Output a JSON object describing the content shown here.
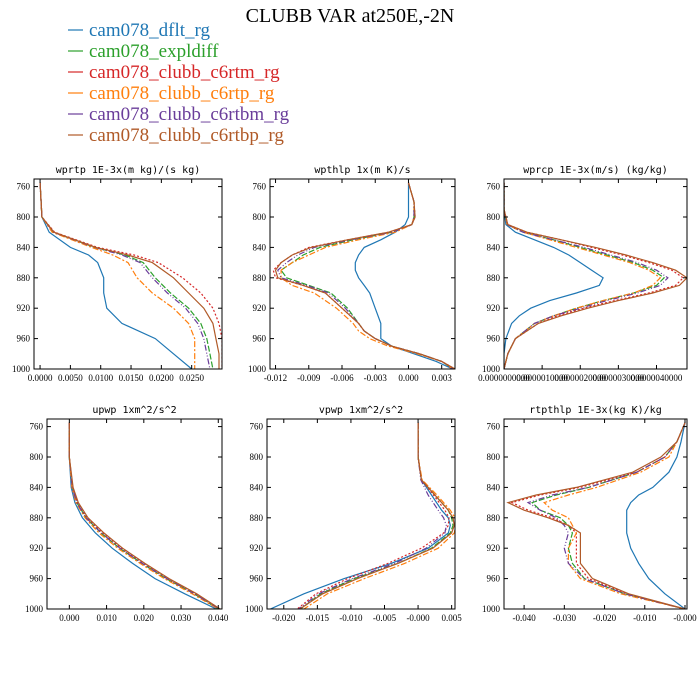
{
  "figure": {
    "title": "CLUBB VAR at250E,-2N"
  },
  "legend": [
    {
      "label": "cam078_dflt_rg",
      "color": "#1f77b4"
    },
    {
      "label": "cam078_expldiff",
      "color": "#2ca02c"
    },
    {
      "label": "cam078_clubb_c6rtm_rg",
      "color": "#d62728"
    },
    {
      "label": "cam078_clubb_c6rtp_rg",
      "color": "#ff7f0e"
    },
    {
      "label": "cam078_clubb_c6rtbm_rg",
      "color": "#6a3d9a"
    },
    {
      "label": "cam078_clubb_c6rtbp_rg",
      "color": "#b05a28"
    }
  ],
  "chart_data": [
    {
      "type": "line",
      "title": "wprtp  1E-3x(m kg)/(s kg)",
      "xlim": [
        -0.001,
        0.03
      ],
      "ylim": [
        1000,
        750
      ],
      "xticks": [
        0.0,
        0.005,
        0.01,
        0.015,
        0.02,
        0.025
      ],
      "xtick_labels": [
        "0.0000",
        "0.0050",
        "0.0100",
        "0.0150",
        "0.0200",
        "0.0250"
      ],
      "yticks": [
        760,
        800,
        840,
        880,
        920,
        960,
        1000
      ],
      "y": [
        755,
        800,
        820,
        840,
        850,
        860,
        880,
        900,
        920,
        940,
        960,
        980,
        1000
      ],
      "series": [
        {
          "name": "cam078_dflt_rg",
          "values": [
            0.0,
            0.0003,
            0.0015,
            0.005,
            0.008,
            0.0095,
            0.0105,
            0.0105,
            0.011,
            0.0135,
            0.019,
            0.022,
            0.025
          ]
        },
        {
          "name": "cam078_expldiff",
          "values": [
            0.0,
            0.0003,
            0.0022,
            0.009,
            0.014,
            0.017,
            0.019,
            0.0215,
            0.0245,
            0.0265,
            0.0275,
            0.028,
            0.0285
          ]
        },
        {
          "name": "cam078_clubb_c6rtm_rg",
          "values": [
            0.0,
            0.0003,
            0.0024,
            0.0095,
            0.0155,
            0.0195,
            0.0235,
            0.0265,
            0.0285,
            0.0295,
            0.03,
            0.03,
            0.03
          ]
        },
        {
          "name": "cam078_clubb_c6rtp_rg",
          "values": [
            0.0,
            0.0003,
            0.002,
            0.0085,
            0.012,
            0.0145,
            0.016,
            0.0185,
            0.022,
            0.0245,
            0.0255,
            0.0255,
            0.0255
          ]
        },
        {
          "name": "cam078_clubb_c6rtbm_rg",
          "values": [
            0.0,
            0.0003,
            0.0022,
            0.009,
            0.0135,
            0.0165,
            0.0185,
            0.021,
            0.024,
            0.026,
            0.027,
            0.0275,
            0.028
          ]
        },
        {
          "name": "cam078_clubb_c6rtbp_rg",
          "values": [
            0.0,
            0.0003,
            0.0023,
            0.0092,
            0.0145,
            0.0185,
            0.022,
            0.0245,
            0.027,
            0.0285,
            0.029,
            0.0295,
            0.0295
          ]
        }
      ]
    },
    {
      "type": "line",
      "title": "wpthlp  1x(m K)/s",
      "xlim": [
        -0.0125,
        0.0042
      ],
      "ylim": [
        1000,
        750
      ],
      "xticks": [
        -0.012,
        -0.009,
        -0.006,
        -0.003,
        0.0,
        0.003
      ],
      "xtick_labels": [
        "-0.012",
        "-0.009",
        "-0.006",
        "-0.003",
        "0.000",
        "0.003"
      ],
      "yticks": [
        760,
        800,
        840,
        880,
        920,
        960,
        1000
      ],
      "y": [
        755,
        780,
        800,
        810,
        820,
        830,
        840,
        850,
        860,
        870,
        880,
        890,
        900,
        920,
        940,
        950,
        960,
        970,
        980,
        990,
        1000
      ],
      "series": [
        {
          "name": "cam078_dflt_rg",
          "values": [
            0.0,
            0.0,
            0.0,
            -0.0003,
            -0.0012,
            -0.0025,
            -0.004,
            -0.0045,
            -0.0048,
            -0.0048,
            -0.0045,
            -0.004,
            -0.0035,
            -0.003,
            -0.0025,
            -0.0025,
            -0.0025,
            -0.0015,
            0.0005,
            0.0025,
            0.004
          ]
        },
        {
          "name": "cam078_expldiff",
          "values": [
            0.0,
            0.0005,
            0.0005,
            0.0003,
            -0.0015,
            -0.005,
            -0.008,
            -0.0095,
            -0.0105,
            -0.0115,
            -0.011,
            -0.009,
            -0.007,
            -0.0055,
            -0.0045,
            -0.004,
            -0.003,
            -0.0015,
            0.001,
            0.003,
            0.004
          ]
        },
        {
          "name": "cam078_clubb_c6rtm_rg",
          "values": [
            0.0,
            0.0005,
            0.0006,
            0.0003,
            -0.0018,
            -0.0055,
            -0.009,
            -0.0105,
            -0.0115,
            -0.0122,
            -0.012,
            -0.0095,
            -0.0075,
            -0.006,
            -0.0045,
            -0.004,
            -0.003,
            -0.0015,
            0.001,
            0.003,
            0.0042
          ]
        },
        {
          "name": "cam078_clubb_c6rtp_rg",
          "values": [
            0.0,
            0.0005,
            0.0005,
            0.0003,
            -0.0012,
            -0.0045,
            -0.0075,
            -0.009,
            -0.0105,
            -0.0115,
            -0.0115,
            -0.0105,
            -0.0085,
            -0.0065,
            -0.005,
            -0.0045,
            -0.0035,
            -0.0018,
            0.0008,
            0.003,
            0.004
          ]
        },
        {
          "name": "cam078_clubb_c6rtbm_rg",
          "values": [
            0.0,
            0.0005,
            0.0005,
            0.0003,
            -0.0015,
            -0.0052,
            -0.0085,
            -0.01,
            -0.011,
            -0.0118,
            -0.0115,
            -0.0092,
            -0.0072,
            -0.0057,
            -0.0045,
            -0.004,
            -0.003,
            -0.0015,
            0.001,
            0.003,
            0.004
          ]
        },
        {
          "name": "cam078_clubb_c6rtbp_rg",
          "values": [
            0.0,
            0.0005,
            0.0006,
            0.0003,
            -0.0018,
            -0.0055,
            -0.0088,
            -0.0105,
            -0.0115,
            -0.012,
            -0.0118,
            -0.0095,
            -0.0075,
            -0.006,
            -0.0045,
            -0.004,
            -0.003,
            -0.0015,
            0.001,
            0.003,
            0.0042
          ]
        }
      ]
    },
    {
      "type": "line",
      "title": "wprcp  1E-3x(m/s) (kg/kg)",
      "xlim": [
        0.0,
        4.8e-06
      ],
      "ylim": [
        1000,
        750
      ],
      "xticks": [
        0.0,
        1e-06,
        2e-06,
        3e-06,
        4e-06
      ],
      "xtick_labels": [
        "0.0000000000",
        "0.0000010000",
        "0.0000020000",
        "0.0000030000",
        "0.0000040000"
      ],
      "yticks": [
        760,
        800,
        840,
        880,
        920,
        960,
        1000
      ],
      "y": [
        755,
        790,
        810,
        820,
        830,
        840,
        850,
        860,
        870,
        880,
        890,
        900,
        910,
        920,
        930,
        940,
        960,
        980,
        1000
      ],
      "series": [
        {
          "name": "cam078_dflt_rg",
          "values": [
            0.0,
            0.0,
            5e-08,
            3e-07,
            8e-07,
            1.3e-06,
            1.7e-06,
            2e-06,
            2.3e-06,
            2.6e-06,
            2.5e-06,
            1.9e-06,
            1.2e-06,
            7e-07,
            4e-07,
            2e-07,
            5e-08,
            0.0,
            0.0
          ]
        },
        {
          "name": "cam078_expldiff",
          "values": [
            0.0,
            0.0,
            8e-08,
            5e-07,
            1.3e-06,
            2e-06,
            2.7e-06,
            3.4e-06,
            3.9e-06,
            4.2e-06,
            4e-06,
            3.4e-06,
            2.6e-06,
            1.9e-06,
            1.3e-06,
            8e-07,
            3e-07,
            1e-07,
            0.0
          ]
        },
        {
          "name": "cam078_clubb_c6rtm_rg",
          "values": [
            0.0,
            0.0,
            1e-07,
            6e-07,
            1.5e-06,
            2.3e-06,
            3.1e-06,
            3.8e-06,
            4.4e-06,
            4.7e-06,
            4.5e-06,
            3.8e-06,
            2.9e-06,
            2.1e-06,
            1.4e-06,
            9e-07,
            3e-07,
            1e-07,
            0.0
          ]
        },
        {
          "name": "cam078_clubb_c6rtp_rg",
          "values": [
            0.0,
            0.0,
            8e-08,
            5e-07,
            1.2e-06,
            1.9e-06,
            2.6e-06,
            3.3e-06,
            3.8e-06,
            4.1e-06,
            3.9e-06,
            3.4e-06,
            2.6e-06,
            1.9e-06,
            1.3e-06,
            8e-07,
            3e-07,
            1e-07,
            0.0
          ]
        },
        {
          "name": "cam078_clubb_c6rtbm_rg",
          "values": [
            0.0,
            0.0,
            8e-08,
            5e-07,
            1.3e-06,
            2.1e-06,
            2.8e-06,
            3.5e-06,
            4e-06,
            4.3e-06,
            4.1e-06,
            3.5e-06,
            2.7e-06,
            2e-06,
            1.3e-06,
            8e-07,
            3e-07,
            1e-07,
            0.0
          ]
        },
        {
          "name": "cam078_clubb_c6rtbp_rg",
          "values": [
            0.0,
            0.0,
            1e-07,
            6e-07,
            1.5e-06,
            2.4e-06,
            3.2e-06,
            3.9e-06,
            4.5e-06,
            4.8e-06,
            4.6e-06,
            3.9e-06,
            3e-06,
            2.2e-06,
            1.5e-06,
            9e-07,
            3e-07,
            1e-07,
            0.0
          ]
        }
      ]
    },
    {
      "type": "line",
      "title": "upwp  1xm^2/s^2",
      "xlim": [
        -0.006,
        0.041
      ],
      "ylim": [
        1000,
        750
      ],
      "xticks": [
        0.0,
        0.01,
        0.02,
        0.03,
        0.04
      ],
      "xtick_labels": [
        "0.000",
        "0.010",
        "0.020",
        "0.030",
        "0.040"
      ],
      "yticks": [
        760,
        800,
        840,
        880,
        920,
        960,
        1000
      ],
      "y": [
        755,
        800,
        840,
        860,
        880,
        900,
        920,
        940,
        960,
        980,
        1000
      ],
      "series": [
        {
          "name": "cam078_dflt_rg",
          "values": [
            0.0,
            0.0,
            0.0005,
            0.0015,
            0.0035,
            0.007,
            0.0115,
            0.017,
            0.023,
            0.031,
            0.0395
          ]
        },
        {
          "name": "cam078_expldiff",
          "values": [
            0.0,
            0.0,
            0.0008,
            0.002,
            0.0045,
            0.0085,
            0.0135,
            0.0195,
            0.026,
            0.0335,
            0.04
          ]
        },
        {
          "name": "cam078_clubb_c6rtm_rg",
          "values": [
            0.0,
            0.0,
            0.0009,
            0.0022,
            0.0048,
            0.009,
            0.014,
            0.02,
            0.0265,
            0.034,
            0.0405
          ]
        },
        {
          "name": "cam078_clubb_c6rtp_rg",
          "values": [
            0.0,
            0.0,
            0.0007,
            0.0018,
            0.0042,
            0.008,
            0.013,
            0.019,
            0.0255,
            0.033,
            0.04
          ]
        },
        {
          "name": "cam078_clubb_c6rtbm_rg",
          "values": [
            0.0,
            0.0,
            0.0008,
            0.002,
            0.0045,
            0.0086,
            0.0136,
            0.0196,
            0.0262,
            0.0336,
            0.0403
          ]
        },
        {
          "name": "cam078_clubb_c6rtbp_rg",
          "values": [
            0.0,
            0.0,
            0.001,
            0.0024,
            0.005,
            0.0093,
            0.0143,
            0.0203,
            0.0268,
            0.0342,
            0.0405
          ]
        }
      ]
    },
    {
      "type": "line",
      "title": "vpwp  1xm^2/s^2",
      "xlim": [
        -0.0225,
        0.0055
      ],
      "ylim": [
        1000,
        750
      ],
      "xticks": [
        -0.02,
        -0.015,
        -0.01,
        -0.005,
        0.0,
        0.005
      ],
      "xtick_labels": [
        "-0.020",
        "-0.015",
        "-0.010",
        "-0.005",
        "-0.000",
        "0.005"
      ],
      "yticks": [
        760,
        800,
        840,
        880,
        920,
        960,
        1000
      ],
      "y": [
        755,
        800,
        830,
        850,
        870,
        880,
        890,
        900,
        920,
        940,
        960,
        980,
        1000
      ],
      "series": [
        {
          "name": "cam078_dflt_rg",
          "values": [
            0.0,
            0.0,
            0.0005,
            0.002,
            0.0035,
            0.0045,
            0.0048,
            0.0045,
            0.0015,
            -0.004,
            -0.011,
            -0.017,
            -0.022
          ]
        },
        {
          "name": "cam078_expldiff",
          "values": [
            0.0,
            0.0,
            0.0005,
            0.0025,
            0.0045,
            0.005,
            0.0052,
            0.0048,
            0.002,
            -0.003,
            -0.0095,
            -0.0145,
            -0.0175
          ]
        },
        {
          "name": "cam078_clubb_c6rtm_rg",
          "values": [
            0.0,
            0.0,
            0.0005,
            0.0023,
            0.004,
            0.0046,
            0.0045,
            0.0038,
            0.0005,
            -0.0045,
            -0.0105,
            -0.0152,
            -0.018
          ]
        },
        {
          "name": "cam078_clubb_c6rtp_rg",
          "values": [
            0.0,
            0.0,
            0.0006,
            0.0028,
            0.0048,
            0.0055,
            0.0056,
            0.0054,
            0.003,
            -0.002,
            -0.008,
            -0.0135,
            -0.017
          ]
        },
        {
          "name": "cam078_clubb_c6rtbm_rg",
          "values": [
            0.0,
            0.0,
            0.0004,
            0.0015,
            0.003,
            0.0038,
            0.0042,
            0.004,
            0.0012,
            -0.0035,
            -0.0098,
            -0.0148,
            -0.0178
          ]
        },
        {
          "name": "cam078_clubb_c6rtbp_rg",
          "values": [
            0.0,
            0.0,
            0.0005,
            0.0025,
            0.0045,
            0.0052,
            0.0054,
            0.005,
            0.0022,
            -0.003,
            -0.009,
            -0.0142,
            -0.0176
          ]
        }
      ]
    },
    {
      "type": "line",
      "title": "rtpthlp  1E-3x(kg K)/kg",
      "xlim": [
        -0.045,
        0.0005
      ],
      "ylim": [
        1000,
        750
      ],
      "xticks": [
        -0.04,
        -0.03,
        -0.02,
        -0.01,
        0.0
      ],
      "xtick_labels": [
        "-0.040",
        "-0.030",
        "-0.020",
        "-0.010",
        "-0.000"
      ],
      "yticks": [
        760,
        800,
        840,
        880,
        920,
        960,
        1000
      ],
      "y": [
        755,
        780,
        800,
        820,
        840,
        850,
        860,
        870,
        880,
        890,
        900,
        920,
        940,
        960,
        980,
        1000
      ],
      "series": [
        {
          "name": "cam078_dflt_rg",
          "values": [
            0.0,
            -0.001,
            -0.002,
            -0.004,
            -0.008,
            -0.0115,
            -0.0135,
            -0.0145,
            -0.0145,
            -0.0145,
            -0.0145,
            -0.0135,
            -0.0115,
            -0.009,
            -0.005,
            0.0
          ]
        },
        {
          "name": "cam078_expldiff",
          "values": [
            0.0,
            -0.002,
            -0.005,
            -0.012,
            -0.024,
            -0.032,
            -0.038,
            -0.036,
            -0.031,
            -0.029,
            -0.028,
            -0.029,
            -0.028,
            -0.025,
            -0.015,
            0.0
          ]
        },
        {
          "name": "cam078_clubb_c6rtm_rg",
          "values": [
            0.0,
            -0.002,
            -0.005,
            -0.012,
            -0.026,
            -0.036,
            -0.043,
            -0.039,
            -0.033,
            -0.029,
            -0.027,
            -0.027,
            -0.027,
            -0.024,
            -0.0145,
            0.0
          ]
        },
        {
          "name": "cam078_clubb_c6rtp_rg",
          "values": [
            0.0,
            -0.002,
            -0.004,
            -0.011,
            -0.022,
            -0.029,
            -0.035,
            -0.033,
            -0.029,
            -0.028,
            -0.027,
            -0.029,
            -0.029,
            -0.026,
            -0.016,
            0.0
          ]
        },
        {
          "name": "cam078_clubb_c6rtbm_rg",
          "values": [
            0.0,
            -0.002,
            -0.005,
            -0.012,
            -0.024,
            -0.033,
            -0.039,
            -0.036,
            -0.032,
            -0.03,
            -0.029,
            -0.03,
            -0.029,
            -0.025,
            -0.015,
            0.0
          ]
        },
        {
          "name": "cam078_clubb_c6rtbp_rg",
          "values": [
            0.0,
            -0.002,
            -0.006,
            -0.013,
            -0.027,
            -0.037,
            -0.044,
            -0.04,
            -0.034,
            -0.029,
            -0.026,
            -0.026,
            -0.026,
            -0.023,
            -0.014,
            0.0
          ]
        }
      ]
    }
  ]
}
